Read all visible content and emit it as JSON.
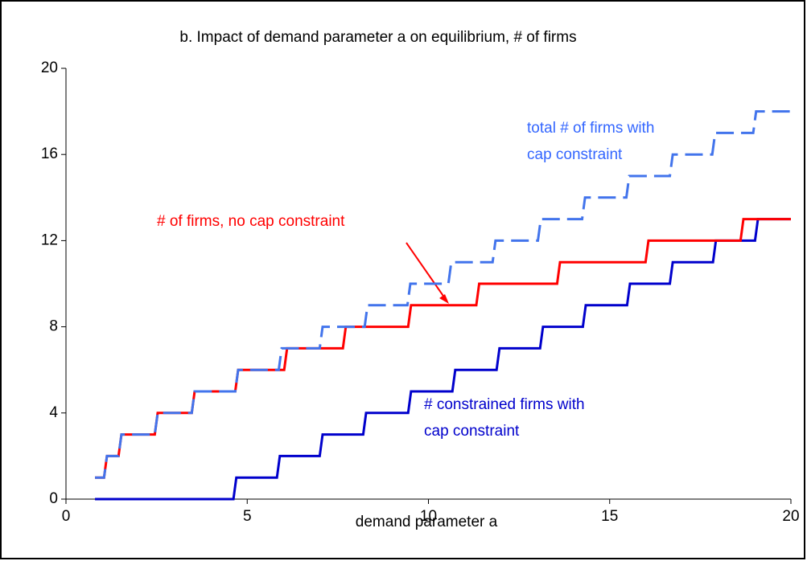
{
  "chart_data": {
    "type": "line",
    "title": "b. Impact of demand parameter a on equilibrium, # of firms",
    "xlabel": "demand parameter a",
    "xlim": [
      0,
      20
    ],
    "xticks": [
      0,
      5,
      10,
      15,
      20
    ],
    "ylim": [
      0,
      20
    ],
    "yticks": [
      0,
      4,
      8,
      12,
      16,
      20
    ],
    "series": [
      {
        "name": "# constrained firms with cap constraint",
        "color": "#0000cc",
        "dashed": false,
        "x": [
          0.8,
          4.62,
          4.7,
          5.82,
          5.9,
          7.0,
          7.08,
          8.2,
          8.28,
          9.44,
          9.52,
          10.66,
          10.74,
          11.88,
          11.96,
          13.08,
          13.16,
          14.26,
          14.34,
          15.48,
          15.56,
          16.66,
          16.74,
          17.85,
          17.93,
          19.01,
          19.09,
          20
        ],
        "values": [
          0,
          0,
          1,
          1,
          2,
          2,
          3,
          3,
          4,
          4,
          5,
          5,
          6,
          6,
          7,
          7,
          8,
          8,
          9,
          9,
          10,
          10,
          11,
          11,
          12,
          12,
          13,
          13
        ]
      },
      {
        "name": "# of firms, no cap constraint",
        "color": "#ff0000",
        "dashed": false,
        "x": [
          0.8,
          1.05,
          1.13,
          1.45,
          1.53,
          2.45,
          2.53,
          3.47,
          3.55,
          4.67,
          4.75,
          6.02,
          6.1,
          7.64,
          7.72,
          9.44,
          9.52,
          11.32,
          11.4,
          13.55,
          13.63,
          15.99,
          16.07,
          18.61,
          18.69,
          20
        ],
        "values": [
          1,
          1,
          2,
          2,
          3,
          3,
          4,
          4,
          5,
          5,
          6,
          6,
          7,
          7,
          8,
          8,
          9,
          9,
          10,
          10,
          11,
          11,
          12,
          12,
          13,
          13
        ]
      },
      {
        "name": "total # of firms with cap constraint",
        "color": "#4274ec",
        "dashed": true,
        "x": [
          0.8,
          1.05,
          1.13,
          1.45,
          1.53,
          2.45,
          2.53,
          3.47,
          3.55,
          4.67,
          4.75,
          5.87,
          5.95,
          7.0,
          7.08,
          8.24,
          8.32,
          9.42,
          9.5,
          10.55,
          10.63,
          11.77,
          11.85,
          13.02,
          13.1,
          14.24,
          14.32,
          15.46,
          15.54,
          16.66,
          16.74,
          17.83,
          17.91,
          18.96,
          19.04,
          20
        ],
        "values": [
          1,
          1,
          2,
          2,
          3,
          3,
          4,
          4,
          5,
          5,
          6,
          6,
          7,
          7,
          8,
          8,
          9,
          9,
          10,
          10,
          11,
          11,
          12,
          12,
          13,
          13,
          14,
          14,
          15,
          15,
          16,
          16,
          17,
          17,
          18,
          18
        ]
      }
    ],
    "annotations": [
      {
        "lines": [
          "total # of firms with",
          "cap constraint"
        ],
        "color": "#3366ff"
      },
      {
        "lines": [
          "# of firms, no cap constraint"
        ],
        "color": "#ff0000"
      },
      {
        "lines": [
          "# constrained firms with",
          "cap constraint"
        ],
        "color": "#0000cc"
      }
    ]
  }
}
